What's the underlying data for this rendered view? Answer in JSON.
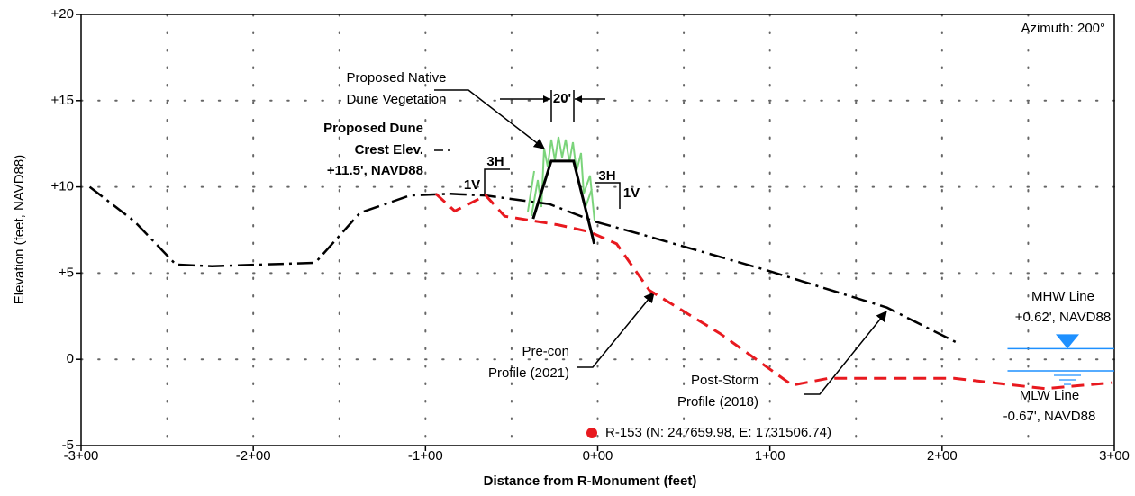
{
  "chart_data": {
    "type": "line",
    "xlabel": "Distance from R-Monument (feet)",
    "ylabel": "Elevation (feet, NAVD88)",
    "xlim": [
      -300,
      300
    ],
    "ylim": [
      -5,
      20
    ],
    "xticks": [
      {
        "value": -300,
        "label": "-3+00"
      },
      {
        "value": -200,
        "label": "-2+00"
      },
      {
        "value": -100,
        "label": "-1+00"
      },
      {
        "value": 0,
        "label": "0+00"
      },
      {
        "value": 100,
        "label": "1+00"
      },
      {
        "value": 200,
        "label": "2+00"
      },
      {
        "value": 300,
        "label": "3+00"
      }
    ],
    "yticks": [
      -5,
      0,
      {
        "value": 5,
        "label": "+5"
      },
      {
        "value": 10,
        "label": "+10"
      },
      {
        "value": 15,
        "label": "+15"
      },
      {
        "value": 20,
        "label": "+20"
      }
    ],
    "xgrid": [
      -250,
      -200,
      -150,
      -100,
      -50,
      0,
      50,
      100,
      150,
      200,
      250
    ],
    "ygrid": [
      0,
      5,
      10,
      15
    ],
    "grid": true,
    "series": [
      {
        "color": "#000000",
        "style": "dashdot",
        "x": [
          -295,
          -269,
          -245,
          -224,
          -164,
          -138,
          -109,
          -86,
          -65,
          -28,
          -2,
          27,
          97,
          168,
          210
        ],
        "values": [
          10.0,
          8.0,
          5.5,
          5.4,
          5.6,
          8.5,
          9.5,
          9.6,
          9.5,
          9.0,
          8.0,
          7.2,
          5.2,
          3.0,
          0.9
        ]
      },
      {
        "color": "#e8191f",
        "style": "dashed",
        "x": [
          -94,
          -83,
          -65,
          -54,
          -23,
          -5,
          11,
          30,
          71,
          113,
          134,
          207,
          260,
          299
        ],
        "values": [
          9.6,
          8.6,
          9.5,
          8.3,
          7.8,
          7.4,
          6.7,
          4.0,
          1.5,
          -1.5,
          -1.1,
          -1.1,
          -1.7,
          -1.35
        ]
      },
      {
        "color": "#000000",
        "style": "solid",
        "x": [
          -37.5,
          -27,
          -14,
          -2
        ],
        "values": [
          8.15,
          11.5,
          11.5,
          6.7
        ]
      }
    ],
    "mhw": 0.62,
    "mlw": -0.67,
    "water_x": [
      238,
      300
    ],
    "annotations": {
      "azimuth": "Azimuth: 200°",
      "vegetation": [
        "Proposed Native",
        "Dune Vegetation"
      ],
      "width": "20'",
      "crest": [
        "Proposed Dune",
        "Crest Elev.",
        "+11.5', NAVD88"
      ],
      "slope_left": [
        "1V",
        "3H"
      ],
      "slope_right": [
        "3H",
        "1V"
      ],
      "precon": [
        "Pre-con",
        "Profile (2021)"
      ],
      "poststorm": [
        "Post-Storm",
        "Profile (2018)"
      ],
      "mhw": [
        "MHW Line",
        "+0.62', NAVD88"
      ],
      "mlw": [
        "MLW Line",
        "-0.67', NAVD88"
      ],
      "monument": "R-153 (N: 247659.98, E: 1731506.74)"
    }
  }
}
